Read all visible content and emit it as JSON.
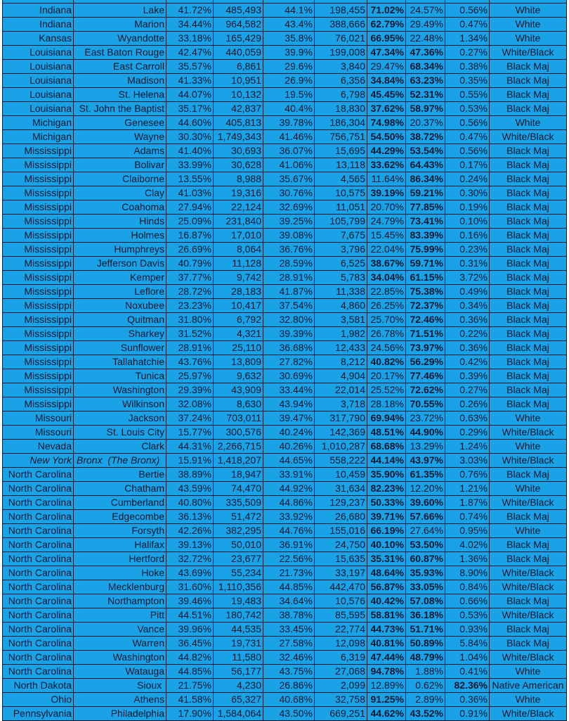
{
  "background_color": "#1aa2e6",
  "text_color": "#0b1730",
  "rows": [
    [
      "Indiana",
      "Lake",
      "41.72%",
      "485,493",
      "44.1%",
      "198,455",
      "71.02%",
      "24.57%",
      "0.56%",
      "White"
    ],
    [
      "Indiana",
      "Marion",
      "34.44%",
      "964,582",
      "43.4%",
      "388,666",
      "62.79%",
      "29.49%",
      "0.47%",
      "White"
    ],
    [
      "Kansas",
      "Wyandotte",
      "33.18%",
      "165,429",
      "35.8%",
      "76,021",
      "66.95%",
      "22.48%",
      "1.34%",
      "White"
    ],
    [
      "Louisiana",
      "East Baton Rouge",
      "42.47%",
      "440,059",
      "39.9%",
      "199,008",
      "47.34%",
      "47.36%",
      "0.27%",
      "White/Black"
    ],
    [
      "Louisiana",
      "East Carroll",
      "35.57%",
      "6,861",
      "29.6%",
      "3,840",
      "29.47%",
      "68.34%",
      "0.38%",
      "Black Maj"
    ],
    [
      "Louisiana",
      "Madison",
      "41.33%",
      "10,951",
      "26.9%",
      "6,356",
      "34.84%",
      "63.23%",
      "0.35%",
      "Black Maj"
    ],
    [
      "Louisiana",
      "St. Helena",
      "44.07%",
      "10,132",
      "19.5%",
      "6,798",
      "45.45%",
      "52.31%",
      "0.55%",
      "Black Maj"
    ],
    [
      "Louisiana",
      "St. John the Baptist",
      "35.17%",
      "42,837",
      "40.4%",
      "18,830",
      "37.62%",
      "58.97%",
      "0.53%",
      "Black Maj"
    ],
    [
      "Michigan",
      "Genesee",
      "44.60%",
      "405,813",
      "39.78%",
      "186,304",
      "74.98%",
      "20.37%",
      "0.56%",
      "White"
    ],
    [
      "Michigan",
      "Wayne",
      "30.30%",
      "1,749,343",
      "41.46%",
      "756,751",
      "54.50%",
      "38.72%",
      "0.47%",
      "White/Black"
    ],
    [
      "Mississippi",
      "Adams",
      "41.40%",
      "30,693",
      "36.07%",
      "15,695",
      "44.29%",
      "53.54%",
      "0.56%",
      "Black Maj"
    ],
    [
      "Mississippi",
      "Bolivar",
      "33.99%",
      "30,628",
      "41.06%",
      "13,118",
      "33.62%",
      "64.43%",
      "0.17%",
      "Black Maj"
    ],
    [
      "Mississippi",
      "Claiborne",
      "13.55%",
      "8,988",
      "35.67%",
      "4,565",
      "11.64%",
      "86.34%",
      "0.24%",
      "Black Maj"
    ],
    [
      "Mississippi",
      "Clay",
      "41.03%",
      "19,316",
      "30.76%",
      "10,575",
      "39.19%",
      "59.21%",
      "0.30%",
      "Black Maj"
    ],
    [
      "Mississippi",
      "Coahoma",
      "27.94%",
      "22,124",
      "32.69%",
      "11,051",
      "20.70%",
      "77.85%",
      "0.19%",
      "Black Maj"
    ],
    [
      "Mississippi",
      "Hinds",
      "25.09%",
      "231,840",
      "39.25%",
      "105,799",
      "24.79%",
      "73.41%",
      "0.10%",
      "Black Maj"
    ],
    [
      "Mississippi",
      "Holmes",
      "16.87%",
      "17,010",
      "39.08%",
      "7,675",
      "15.45%",
      "83.39%",
      "0.16%",
      "Black Maj"
    ],
    [
      "Mississippi",
      "Humphreys",
      "26.69%",
      "8,064",
      "36.76%",
      "3,796",
      "22.04%",
      "75.99%",
      "0.23%",
      "Black Maj"
    ],
    [
      "Mississippi",
      "Jefferson Davis",
      "40.79%",
      "11,128",
      "28.59%",
      "6,525",
      "38.67%",
      "59.71%",
      "0.31%",
      "Black Maj"
    ],
    [
      "Mississippi",
      "Kemper",
      "37.77%",
      "9,742",
      "28.91%",
      "5,783",
      "34.04%",
      "61.15%",
      "3.72%",
      "Black Maj"
    ],
    [
      "Mississippi",
      "Leflore",
      "28.72%",
      "28,183",
      "41.87%",
      "11,338",
      "22.85%",
      "75.38%",
      "0.49%",
      "Black Maj"
    ],
    [
      "Mississippi",
      "Noxubee",
      "23.23%",
      "10,417",
      "37.54%",
      "4,860",
      "26.25%",
      "72.37%",
      "0.34%",
      "Black Maj"
    ],
    [
      "Mississippi",
      "Quitman",
      "31.80%",
      "6,792",
      "32.80%",
      "3,581",
      "25.70%",
      "72.46%",
      "0.36%",
      "Black Maj"
    ],
    [
      "Mississippi",
      "Sharkey",
      "31.52%",
      "4,321",
      "39.39%",
      "1,982",
      "26.78%",
      "71.51%",
      "0.22%",
      "Black Maj"
    ],
    [
      "Mississippi",
      "Sunflower",
      "28.91%",
      "25,110",
      "36.68%",
      "12,433",
      "24.56%",
      "73.97%",
      "0.36%",
      "Black Maj"
    ],
    [
      "Mississippi",
      "Tallahatchie",
      "43.76%",
      "13,809",
      "27.82%",
      "8,212",
      "40.82%",
      "56.29%",
      "0.42%",
      "Black Maj"
    ],
    [
      "Mississippi",
      "Tunica",
      "25.97%",
      "9,632",
      "30.69%",
      "4,904",
      "20.17%",
      "77.46%",
      "0.39%",
      "Black Maj"
    ],
    [
      "Mississippi",
      "Washington",
      "29.39%",
      "43,909",
      "33.44%",
      "22,014",
      "25.52%",
      "72.62%",
      "0.27%",
      "Black Maj"
    ],
    [
      "Mississippi",
      "Wilkinson",
      "32.08%",
      "8,630",
      "43.94%",
      "3,718",
      "28.18%",
      "70.55%",
      "0.26%",
      "Black Maj"
    ],
    [
      "Missouri",
      "Jackson",
      "37.24%",
      "703,011",
      "39.47%",
      "317,790",
      "69.94%",
      "23.72%",
      "0.63%",
      "White"
    ],
    [
      "Missouri",
      "St. Louis City",
      "15.77%",
      "300,576",
      "40.24%",
      "142,369",
      "48.51%",
      "44.90%",
      "0.29%",
      "White/Black"
    ],
    [
      "Nevada",
      "Clark",
      "44.31%",
      "2,266,715",
      "40.26%",
      "1,010,287",
      "68.68%",
      "13.29%",
      "1.24%",
      "White"
    ],
    [
      "New York",
      "Bronx  (The Bronx)",
      "15.91%",
      "1,418,207",
      "44.65%",
      "558,222",
      "44.14%",
      "43.97%",
      "3.03%",
      "White/Black"
    ],
    [
      "North Carolina",
      "Bertie",
      "38.89%",
      "18,947",
      "33.91%",
      "10,459",
      "35.90%",
      "61.35%",
      "0.76%",
      "Black Maj"
    ],
    [
      "North Carolina",
      "Chatham",
      "43.59%",
      "74,470",
      "44.92%",
      "31,634",
      "82.23%",
      "12.20%",
      "1.21%",
      "White"
    ],
    [
      "North Carolina",
      "Cumberland",
      "40.80%",
      "335,509",
      "44.86%",
      "129,237",
      "50.33%",
      "39.60%",
      "1.87%",
      "White/Black"
    ],
    [
      "North Carolina",
      "Edgecombe",
      "36.13%",
      "51,472",
      "33.92%",
      "26,680",
      "39.71%",
      "57.66%",
      "0.74%",
      "Black Maj"
    ],
    [
      "North Carolina",
      "Forsyth",
      "42.26%",
      "382,295",
      "44.76%",
      "155,016",
      "66.19%",
      "27.64%",
      "0.95%",
      "White"
    ],
    [
      "North Carolina",
      "Halifax",
      "39.13%",
      "50,010",
      "36.91%",
      "24,750",
      "40.10%",
      "53.50%",
      "4.02%",
      "Black Maj"
    ],
    [
      "North Carolina",
      "Hertford",
      "32.72%",
      "23,677",
      "22.56%",
      "15,635",
      "35.31%",
      "60.87%",
      "1.36%",
      "Black Maj"
    ],
    [
      "North Carolina",
      "Hoke",
      "43.69%",
      "55,234",
      "21.73%",
      "33,197",
      "48.64%",
      "35.93%",
      "8.90%",
      "White/Black"
    ],
    [
      "North Carolina",
      "Mecklenburg",
      "31.60%",
      "1,110,356",
      "44.85%",
      "442,470",
      "56.87%",
      "33.05%",
      "0.84%",
      "White/Black"
    ],
    [
      "North Carolina",
      "Northampton",
      "39.46%",
      "19,483",
      "34.64%",
      "10,576",
      "40.42%",
      "57.08%",
      "0.66%",
      "Black Maj"
    ],
    [
      "North Carolina",
      "Pitt",
      "44.51%",
      "180,742",
      "38.78%",
      "85,595",
      "58.81%",
      "36.18%",
      "0.53%",
      "White/Black"
    ],
    [
      "North Carolina",
      "Vance",
      "39.96%",
      "44,535",
      "33.45%",
      "22,774",
      "44.73%",
      "51.71%",
      "0.93%",
      "Black Maj"
    ],
    [
      "North Carolina",
      "Warren",
      "36.45%",
      "19,731",
      "27.58%",
      "12,098",
      "40.81%",
      "50.89%",
      "5.84%",
      "Black Maj"
    ],
    [
      "North Carolina",
      "Washington",
      "44.82%",
      "11,580",
      "32.46%",
      "6,319",
      "47.44%",
      "48.79%",
      "1.04%",
      "White/Black"
    ],
    [
      "North Carolina",
      "Watauga",
      "44.85%",
      "56,177",
      "43.75%",
      "27,068",
      "94.78%",
      "1.88%",
      "0.41%",
      "White"
    ],
    [
      "North Dakota",
      "Sioux ",
      "21.75%",
      "4,230",
      "26.86%",
      "2,099",
      "12.89%",
      "0.62%",
      "82.36%",
      "Native American"
    ],
    [
      "Ohio",
      "Athens",
      "41.58%",
      "65,327",
      "40.68%",
      "32,758",
      "91.25%",
      "2.89%",
      "0.36%",
      "White"
    ],
    [
      "Pennsylvania",
      "Philadelphia",
      "17.90%",
      "1,584,064",
      "43.50%",
      "669,251",
      "44.62%",
      "43.52%",
      "0.91%",
      "White/Black"
    ]
  ]
}
